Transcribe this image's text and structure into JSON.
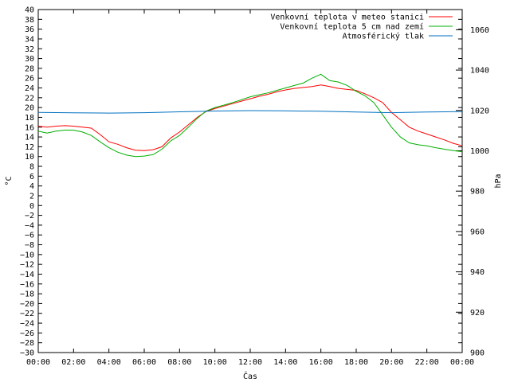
{
  "chart_data": {
    "type": "line",
    "xlabel": "Čas",
    "ylabel": "°C",
    "y2label": "hPa",
    "x_ticks": [
      "00:00",
      "02:00",
      "04:00",
      "06:00",
      "08:00",
      "10:00",
      "12:00",
      "14:00",
      "16:00",
      "18:00",
      "20:00",
      "22:00",
      "00:00"
    ],
    "x_tick_hours": [
      0,
      2,
      4,
      6,
      8,
      10,
      12,
      14,
      16,
      18,
      20,
      22,
      24
    ],
    "xlim": [
      0,
      24
    ],
    "ylim": [
      -30,
      40
    ],
    "y_ticks": [
      40,
      38,
      36,
      34,
      32,
      30,
      28,
      26,
      24,
      22,
      20,
      18,
      16,
      14,
      12,
      10,
      8,
      6,
      4,
      2,
      0,
      -2,
      -4,
      -6,
      -8,
      -10,
      -12,
      -14,
      -16,
      -18,
      -20,
      -22,
      -24,
      -26,
      -28,
      -30
    ],
    "y_tick_labels": [
      "40",
      "38",
      "36",
      "34",
      "32",
      "30",
      "28",
      "26",
      "24",
      "22",
      "20",
      "18",
      "16",
      "14",
      "12",
      "10",
      "8",
      "6",
      "4",
      "2",
      "0",
      "−2",
      "−4",
      "−6",
      "−8",
      "−10",
      "−12",
      "−14",
      "−16",
      "−18",
      "−20",
      "−22",
      "−24",
      "−26",
      "−28",
      "−30"
    ],
    "y2lim": [
      900,
      1070
    ],
    "y2_ticks": [
      1060,
      1040,
      1020,
      1000,
      980,
      960,
      940,
      920,
      900
    ],
    "y2_tick_labels": [
      "1060",
      "1040",
      "1020",
      "1000",
      "980",
      "960",
      "940",
      "920",
      "900"
    ],
    "grid": false,
    "legend_position": "top-right",
    "series": [
      {
        "name": "Venkovní teplota v meteo stanici",
        "color": "#ff0000",
        "axis": "left",
        "x": [
          0,
          0.5,
          1,
          1.5,
          2,
          2.5,
          3,
          3.5,
          4,
          4.5,
          5,
          5.5,
          6,
          6.5,
          7,
          7.5,
          8,
          8.5,
          9,
          9.5,
          10,
          10.5,
          11,
          11.5,
          12,
          12.5,
          13,
          13.5,
          14,
          14.5,
          15,
          15.5,
          16,
          16.5,
          17,
          17.5,
          18,
          18.5,
          19,
          19.5,
          20,
          20.5,
          21,
          21.5,
          22,
          22.5,
          23,
          23.5,
          24
        ],
        "y": [
          16.2,
          16.0,
          16.2,
          16.3,
          16.2,
          16.0,
          15.8,
          14.5,
          13.0,
          12.5,
          11.8,
          11.3,
          11.2,
          11.4,
          12.0,
          13.8,
          15.0,
          16.5,
          18.0,
          19.2,
          19.8,
          20.3,
          20.8,
          21.3,
          21.8,
          22.3,
          22.7,
          23.2,
          23.6,
          23.9,
          24.1,
          24.3,
          24.6,
          24.3,
          23.9,
          23.7,
          23.5,
          22.8,
          22.0,
          21.0,
          19.0,
          17.5,
          16.0,
          15.2,
          14.6,
          14.0,
          13.4,
          12.7,
          12.2
        ]
      },
      {
        "name": "Venkovní teplota 5 cm nad zemí",
        "color": "#00b000",
        "axis": "left",
        "x": [
          0,
          0.5,
          1,
          1.5,
          2,
          2.5,
          3,
          3.5,
          4,
          4.5,
          5,
          5.5,
          6,
          6.5,
          7,
          7.5,
          8,
          8.5,
          9,
          9.5,
          10,
          10.5,
          11,
          11.5,
          12,
          12.5,
          13,
          13.5,
          14,
          14.5,
          15,
          15.5,
          16,
          16.5,
          17,
          17.5,
          18,
          18.5,
          19,
          19.5,
          20,
          20.5,
          21,
          21.5,
          22,
          22.5,
          23,
          23.5,
          24
        ],
        "y": [
          15.2,
          14.8,
          15.2,
          15.4,
          15.4,
          15.0,
          14.3,
          13.0,
          11.8,
          10.9,
          10.3,
          10.0,
          10.1,
          10.4,
          11.5,
          13.2,
          14.3,
          16.0,
          17.8,
          19.3,
          20.0,
          20.5,
          21.0,
          21.6,
          22.2,
          22.6,
          23.0,
          23.5,
          24.0,
          24.5,
          25.0,
          26.0,
          26.8,
          25.5,
          25.2,
          24.5,
          23.3,
          22.4,
          21.0,
          18.5,
          16.0,
          14.0,
          12.8,
          12.4,
          12.2,
          11.8,
          11.5,
          11.2,
          11.0
        ]
      },
      {
        "name": "Atmosférický tlak",
        "color": "#0070c0",
        "axis": "right",
        "x": [
          0,
          2,
          4,
          6,
          8,
          10,
          12,
          14,
          16,
          18,
          20,
          22,
          24
        ],
        "y": [
          1019.0,
          1018.8,
          1018.7,
          1018.9,
          1019.3,
          1019.7,
          1019.9,
          1019.8,
          1019.6,
          1019.2,
          1018.9,
          1019.2,
          1019.4
        ]
      }
    ]
  }
}
